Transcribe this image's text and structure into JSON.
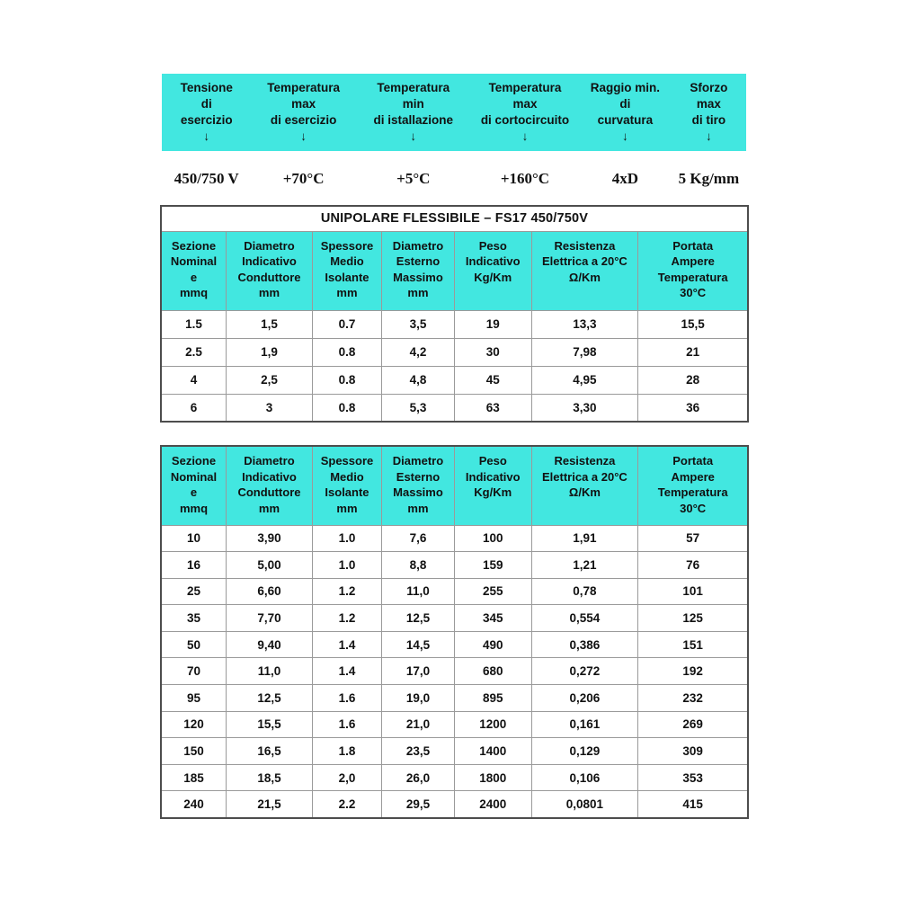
{
  "colors": {
    "header_bg": "#42e7e0",
    "border_outer": "#4d4d4d",
    "border_inner": "#9a9a9a",
    "text": "#111111"
  },
  "spec_band": {
    "headers": [
      "Tensione\ndi\nesercizio\n↓",
      "Temperatura\nmax\ndi esercizio\n↓",
      "Temperatura\nmin\ndi istallazione\n↓",
      "Temperatura\nmax\ndi cortocircuito\n↓",
      "Raggio min.\ndi\ncurvatura\n↓",
      "Sforzo\nmax\ndi tiro\n↓"
    ],
    "values": [
      "450/750 V",
      "+70°C",
      "+5°C",
      "+160°C",
      "4xD",
      "5 Kg/mm"
    ]
  },
  "table1": {
    "title": "UNIPOLARE FLESSIBILE – FS17 450/750V",
    "columns": [
      "Sezione\nNominal\ne\nmmq",
      "Diametro\nIndicativo\nConduttore\nmm",
      "Spessore\nMedio\nIsolante\nmm",
      "Diametro\nEsterno\nMassimo\nmm",
      "Peso\nIndicativo\nKg/Km",
      "Resistenza\nElettrica a 20°C\nΩ/Km",
      "Portata\nAmpere\nTemperatura\n30°C"
    ],
    "rows": [
      [
        "1.5",
        "1,5",
        "0.7",
        "3,5",
        "19",
        "13,3",
        "15,5"
      ],
      [
        "2.5",
        "1,9",
        "0.8",
        "4,2",
        "30",
        "7,98",
        "21"
      ],
      [
        "4",
        "2,5",
        "0.8",
        "4,8",
        "45",
        "4,95",
        "28"
      ],
      [
        "6",
        "3",
        "0.8",
        "5,3",
        "63",
        "3,30",
        "36"
      ]
    ]
  },
  "table2": {
    "columns": [
      "Sezione\nNominal\ne\nmmq",
      "Diametro\nIndicativo\nConduttore\nmm",
      "Spessore\nMedio\nIsolante\nmm",
      "Diametro\nEsterno\nMassimo\nmm",
      "Peso\nIndicativo\nKg/Km",
      "Resistenza\nElettrica a 20°C\nΩ/Km",
      "Portata\nAmpere\nTemperatura\n30°C"
    ],
    "rows": [
      [
        "10",
        "3,90",
        "1.0",
        "7,6",
        "100",
        "1,91",
        "57"
      ],
      [
        "16",
        "5,00",
        "1.0",
        "8,8",
        "159",
        "1,21",
        "76"
      ],
      [
        "25",
        "6,60",
        "1.2",
        "11,0",
        "255",
        "0,78",
        "101"
      ],
      [
        "35",
        "7,70",
        "1.2",
        "12,5",
        "345",
        "0,554",
        "125"
      ],
      [
        "50",
        "9,40",
        "1.4",
        "14,5",
        "490",
        "0,386",
        "151"
      ],
      [
        "70",
        "11,0",
        "1.4",
        "17,0",
        "680",
        "0,272",
        "192"
      ],
      [
        "95",
        "12,5",
        "1.6",
        "19,0",
        "895",
        "0,206",
        "232"
      ],
      [
        "120",
        "15,5",
        "1.6",
        "21,0",
        "1200",
        "0,161",
        "269"
      ],
      [
        "150",
        "16,5",
        "1.8",
        "23,5",
        "1400",
        "0,129",
        "309"
      ],
      [
        "185",
        "18,5",
        "2,0",
        "26,0",
        "1800",
        "0,106",
        "353"
      ],
      [
        "240",
        "21,5",
        "2.2",
        "29,5",
        "2400",
        "0,0801",
        "415"
      ]
    ]
  }
}
